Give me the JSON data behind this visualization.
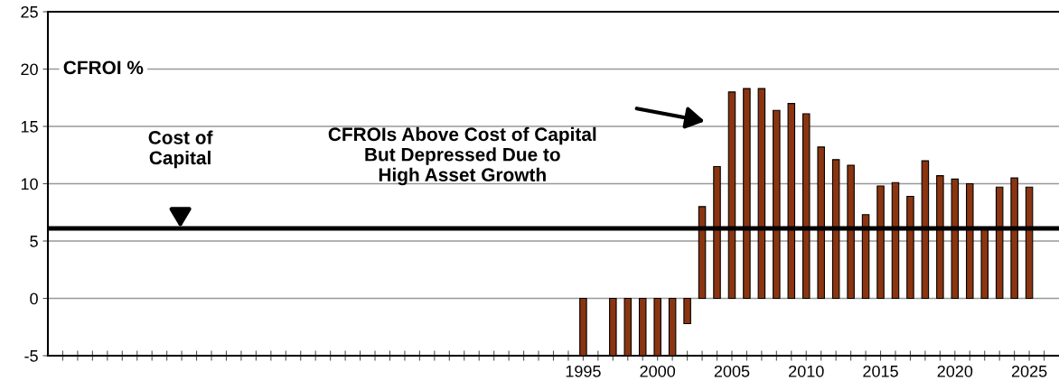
{
  "chart_data": {
    "type": "bar",
    "x": [
      1995,
      1996,
      1997,
      1998,
      1999,
      2000,
      2001,
      2002,
      2003,
      2004,
      2005,
      2006,
      2007,
      2008,
      2009,
      2010,
      2011,
      2012,
      2013,
      2014,
      2015,
      2016,
      2017,
      2018,
      2019,
      2020,
      2021,
      2022,
      2023,
      2024,
      2025
    ],
    "series": [
      {
        "color": "#8b3510",
        "values": [
          -5,
          null,
          -5,
          -5,
          -5,
          -5,
          -5,
          -2.2,
          8.0,
          11.5,
          18.0,
          18.3,
          18.3,
          16.4,
          17.0,
          16.1,
          13.2,
          12.1,
          11.6,
          7.3,
          9.8,
          10.1,
          8.9,
          12.0,
          10.7,
          10.4,
          10.0,
          6.0,
          9.7,
          10.5,
          9.7
        ]
      }
    ],
    "xlim": [
      1959,
      2027
    ],
    "xticks": [
      {
        "value": 1960,
        "label": null
      },
      {
        "value": 1961,
        "label": null
      },
      {
        "value": 1962,
        "label": null
      },
      {
        "value": 1963,
        "label": null
      },
      {
        "value": 1964,
        "label": null
      },
      {
        "value": 1965,
        "label": null
      },
      {
        "value": 1966,
        "label": null
      },
      {
        "value": 1967,
        "label": null
      },
      {
        "value": 1968,
        "label": null
      },
      {
        "value": 1969,
        "label": null
      },
      {
        "value": 1970,
        "label": null
      },
      {
        "value": 1971,
        "label": null
      },
      {
        "value": 1972,
        "label": null
      },
      {
        "value": 1973,
        "label": null
      },
      {
        "value": 1974,
        "label": null
      },
      {
        "value": 1975,
        "label": null
      },
      {
        "value": 1976,
        "label": null
      },
      {
        "value": 1977,
        "label": null
      },
      {
        "value": 1978,
        "label": null
      },
      {
        "value": 1979,
        "label": null
      },
      {
        "value": 1980,
        "label": null
      },
      {
        "value": 1981,
        "label": null
      },
      {
        "value": 1982,
        "label": null
      },
      {
        "value": 1983,
        "label": null
      },
      {
        "value": 1984,
        "label": null
      },
      {
        "value": 1985,
        "label": null
      },
      {
        "value": 1986,
        "label": null
      },
      {
        "value": 1987,
        "label": null
      },
      {
        "value": 1988,
        "label": null
      },
      {
        "value": 1989,
        "label": null
      },
      {
        "value": 1990,
        "label": null
      },
      {
        "value": 1991,
        "label": null
      },
      {
        "value": 1992,
        "label": null
      },
      {
        "value": 1993,
        "label": null
      },
      {
        "value": 1994,
        "label": null
      },
      1995,
      {
        "value": 1996,
        "label": null
      },
      {
        "value": 1997,
        "label": null
      },
      {
        "value": 1998,
        "label": null
      },
      {
        "value": 1999,
        "label": null
      },
      2000,
      {
        "value": 2001,
        "label": null
      },
      {
        "value": 2002,
        "label": null
      },
      {
        "value": 2003,
        "label": null
      },
      {
        "value": 2004,
        "label": null
      },
      2005,
      {
        "value": 2006,
        "label": null
      },
      {
        "value": 2007,
        "label": null
      },
      {
        "value": 2008,
        "label": null
      },
      {
        "value": 2009,
        "label": null
      },
      2010,
      {
        "value": 2011,
        "label": null
      },
      {
        "value": 2012,
        "label": null
      },
      {
        "value": 2013,
        "label": null
      },
      {
        "value": 2014,
        "label": null
      },
      2015,
      {
        "value": 2016,
        "label": null
      },
      {
        "value": 2017,
        "label": null
      },
      {
        "value": 2018,
        "label": null
      },
      {
        "value": 2019,
        "label": null
      },
      2020,
      {
        "value": 2021,
        "label": null
      },
      {
        "value": 2022,
        "label": null
      },
      {
        "value": 2023,
        "label": null
      },
      {
        "value": 2024,
        "label": null
      },
      2025,
      {
        "value": 2026,
        "label": null
      }
    ],
    "ylim": [
      -5,
      25
    ],
    "yticks": [
      -5,
      0,
      5,
      10,
      15,
      20,
      25
    ],
    "grid": "y",
    "ref_lines": [
      {
        "axis": "y",
        "value": 6.1,
        "color": "#000000"
      }
    ],
    "annotations": [
      "CFROI %",
      "Cost of\nCapital",
      "CFROIs Above Cost of Capital\nBut Depressed Due to\nHigh Asset Growth"
    ]
  }
}
